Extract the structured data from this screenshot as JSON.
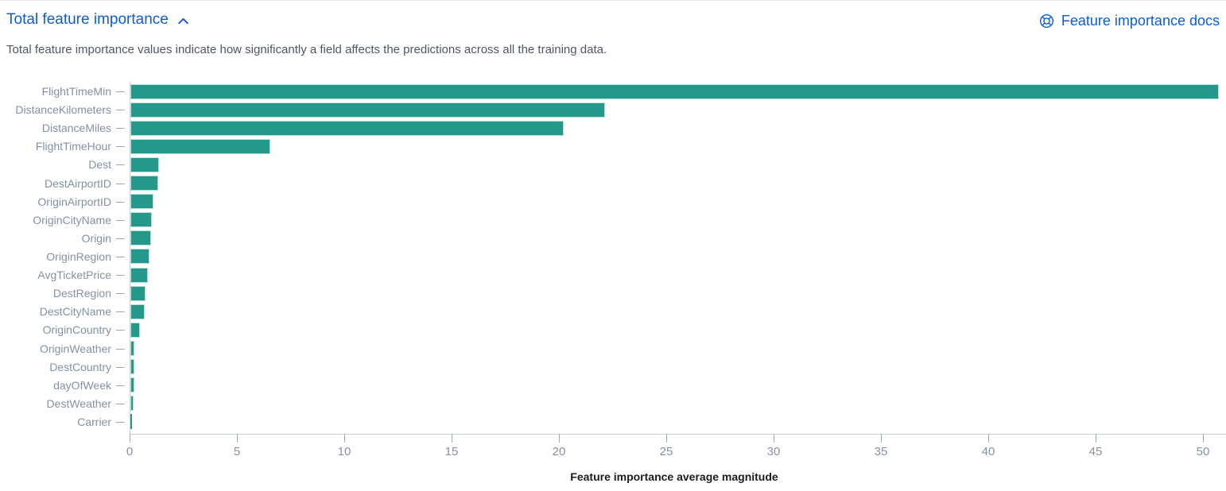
{
  "panel": {
    "title": "Total feature importance",
    "docs_link_label": "Feature importance docs",
    "description": "Total feature importance values indicate how significantly a field affects the predictions across all the training data."
  },
  "icons": {
    "accordion_state": "chevron-up",
    "docs_icon": "help-life-ring"
  },
  "colors": {
    "link_blue": "#0E5DD3",
    "bar_teal": "#24998B",
    "axis_label_slate": "#8491A5",
    "axis_line_gray": "#C9CFDA",
    "tick_mark_gray": "#9DA8BA",
    "axis_title_text": "#1A1C21",
    "description_text": "#4F5666"
  },
  "chart_data": {
    "type": "bar",
    "orientation": "horizontal",
    "title": "",
    "xlabel": "Feature importance average magnitude",
    "ylabel": "",
    "xlim": [
      0,
      51
    ],
    "xticks": [
      0,
      5,
      10,
      15,
      20,
      25,
      30,
      35,
      40,
      45,
      50
    ],
    "grid": false,
    "legend": "none",
    "categories": [
      "FlightTimeMin",
      "DistanceKilometers",
      "DistanceMiles",
      "FlightTimeHour",
      "Dest",
      "DestAirportID",
      "OriginAirportID",
      "OriginCityName",
      "Origin",
      "OriginRegion",
      "AvgTicketPrice",
      "DestRegion",
      "DestCityName",
      "OriginCountry",
      "OriginWeather",
      "DestCountry",
      "dayOfWeek",
      "DestWeather",
      "Carrier"
    ],
    "values": [
      50.7,
      22.1,
      20.2,
      6.5,
      1.35,
      1.3,
      1.07,
      1.0,
      0.96,
      0.89,
      0.82,
      0.72,
      0.65,
      0.44,
      0.19,
      0.18,
      0.17,
      0.15,
      0.06
    ]
  }
}
